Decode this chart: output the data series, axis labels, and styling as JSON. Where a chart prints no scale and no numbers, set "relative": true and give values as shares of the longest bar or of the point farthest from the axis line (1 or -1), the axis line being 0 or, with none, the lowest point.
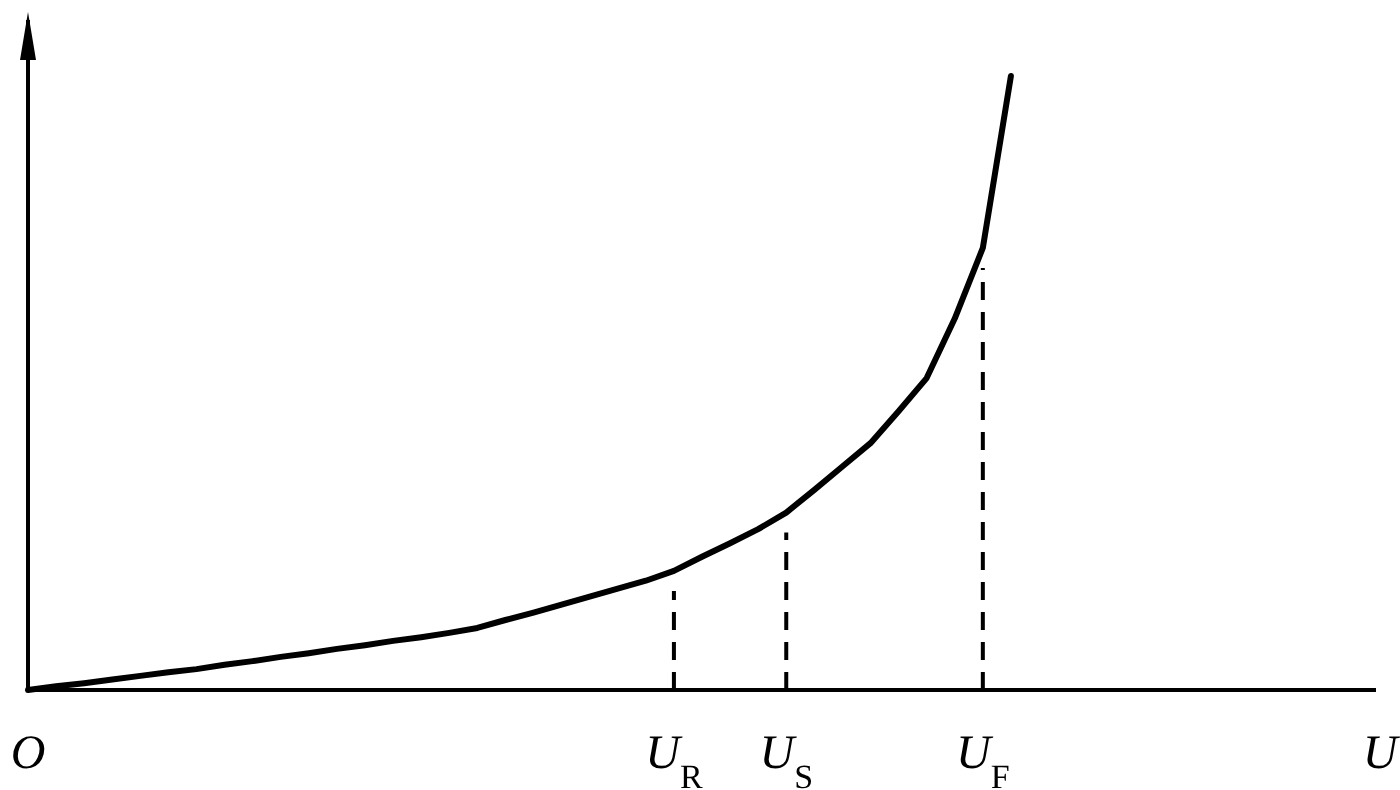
{
  "chart_data": {
    "type": "line",
    "relative": true,
    "xlabel": "U",
    "categories": [
      "O",
      null,
      null,
      null,
      null,
      null,
      null,
      null,
      null,
      null,
      null,
      null,
      null,
      null,
      null,
      null,
      null,
      null,
      null,
      null,
      null,
      null,
      null,
      "U$_{R}$",
      null,
      null,
      null,
      "U$_{S}$",
      null,
      null,
      null,
      null,
      null,
      null,
      "U$_{F}$",
      null,
      null,
      null,
      null,
      null,
      null,
      null,
      null,
      null,
      null,
      null,
      null,
      null,
      null
    ],
    "series": [
      {
        "color": "#000000",
        "values": [
          0,
          0.006,
          0.011,
          0.017,
          0.023,
          0.029,
          0.034,
          0.041,
          0.047,
          0.054,
          0.06,
          0.067,
          0.073,
          0.08,
          0.086,
          0.093,
          0.101,
          0.114,
          0.126,
          0.139,
          0.152,
          0.165,
          0.178,
          0.194,
          0.217,
          0.239,
          0.262,
          0.289,
          0.326,
          0.364,
          0.402,
          0.454,
          0.508,
          0.605,
          0.72,
          1.0,
          null,
          null,
          null,
          null,
          null,
          null,
          null,
          null,
          null,
          null,
          null,
          null,
          null
        ]
      }
    ],
    "ref_lines": [
      {
        "axis": "x",
        "value": "U$_{R}$",
        "line_style": "dashed"
      },
      {
        "axis": "x",
        "value": "U$_{S}$",
        "line_style": "dashed"
      },
      {
        "axis": "x",
        "value": "U$_{F}$",
        "line_style": "dashed"
      }
    ],
    "grid": false,
    "marker": "none",
    "line_style": "solid"
  }
}
